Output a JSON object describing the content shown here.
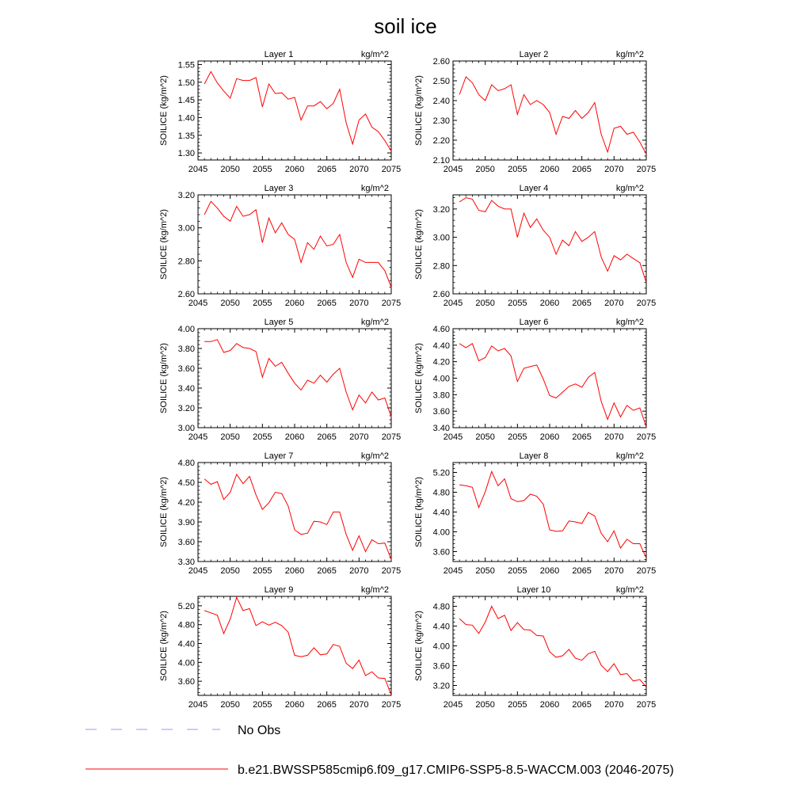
{
  "title": "soil ice",
  "units_label": "kg/m^2",
  "series_color": "#ff0000",
  "obs_color": "#9999ff",
  "legend": {
    "obs_label": "No Obs",
    "model_label": "b.e21.BWSSP585cmip6.f09_g17.CMIP6-SSP5-8.5-WACCM.003 (2046-2075)"
  },
  "chart_data": [
    {
      "type": "line",
      "title": "Layer 1",
      "units": "kg/m^2",
      "ylabel": "SOILICE  (kg/m^2)",
      "xlim": [
        2045,
        2075
      ],
      "xticks": [
        2045,
        2050,
        2055,
        2060,
        2065,
        2070,
        2075
      ],
      "ylim": [
        1.28,
        1.56
      ],
      "yticks": [
        "1.30",
        "1.35",
        "1.40",
        "1.45",
        "1.50",
        "1.55"
      ],
      "x": [
        2046,
        2047,
        2048,
        2049,
        2050,
        2051,
        2052,
        2053,
        2054,
        2055,
        2056,
        2057,
        2058,
        2059,
        2060,
        2061,
        2062,
        2063,
        2064,
        2065,
        2066,
        2067,
        2068,
        2069,
        2070,
        2071,
        2072,
        2073,
        2074,
        2075
      ],
      "values": [
        1.495,
        1.53,
        1.498,
        1.475,
        1.455,
        1.51,
        1.505,
        1.505,
        1.513,
        1.43,
        1.495,
        1.468,
        1.47,
        1.452,
        1.457,
        1.393,
        1.433,
        1.433,
        1.445,
        1.425,
        1.44,
        1.48,
        1.385,
        1.325,
        1.393,
        1.41,
        1.373,
        1.36,
        1.335,
        1.305
      ]
    },
    {
      "type": "line",
      "title": "Layer 2",
      "units": "kg/m^2",
      "ylabel": "SOILICE  (kg/m^2)",
      "xlim": [
        2045,
        2075
      ],
      "xticks": [
        2045,
        2050,
        2055,
        2060,
        2065,
        2070,
        2075
      ],
      "ylim": [
        2.1,
        2.6
      ],
      "yticks": [
        "2.10",
        "2.20",
        "2.30",
        "2.40",
        "2.50",
        "2.60"
      ],
      "x": [
        2046,
        2047,
        2048,
        2049,
        2050,
        2051,
        2052,
        2053,
        2054,
        2055,
        2056,
        2057,
        2058,
        2059,
        2060,
        2061,
        2062,
        2063,
        2064,
        2065,
        2066,
        2067,
        2068,
        2069,
        2070,
        2071,
        2072,
        2073,
        2074,
        2075
      ],
      "values": [
        2.43,
        2.52,
        2.49,
        2.43,
        2.4,
        2.48,
        2.45,
        2.46,
        2.48,
        2.33,
        2.43,
        2.38,
        2.4,
        2.38,
        2.34,
        2.23,
        2.32,
        2.31,
        2.35,
        2.31,
        2.34,
        2.39,
        2.23,
        2.14,
        2.26,
        2.27,
        2.23,
        2.24,
        2.19,
        2.13
      ]
    },
    {
      "type": "line",
      "title": "Layer 3",
      "units": "kg/m^2",
      "ylabel": "SOILICE  (kg/m^2)",
      "xlim": [
        2045,
        2075
      ],
      "xticks": [
        2045,
        2050,
        2055,
        2060,
        2065,
        2070,
        2075
      ],
      "ylim": [
        2.6,
        3.2
      ],
      "yticks": [
        "2.60",
        "2.80",
        "3.00",
        "3.20"
      ],
      "x": [
        2046,
        2047,
        2048,
        2049,
        2050,
        2051,
        2052,
        2053,
        2054,
        2055,
        2056,
        2057,
        2058,
        2059,
        2060,
        2061,
        2062,
        2063,
        2064,
        2065,
        2066,
        2067,
        2068,
        2069,
        2070,
        2071,
        2072,
        2073,
        2074,
        2075
      ],
      "values": [
        3.08,
        3.16,
        3.12,
        3.07,
        3.04,
        3.13,
        3.07,
        3.08,
        3.11,
        2.91,
        3.06,
        2.97,
        3.03,
        2.96,
        2.93,
        2.79,
        2.91,
        2.87,
        2.95,
        2.89,
        2.9,
        2.96,
        2.79,
        2.7,
        2.81,
        2.79,
        2.79,
        2.79,
        2.74,
        2.64
      ]
    },
    {
      "type": "line",
      "title": "Layer 4",
      "units": "kg/m^2",
      "ylabel": "SOILICE  (kg/m^2)",
      "xlim": [
        2045,
        2075
      ],
      "xticks": [
        2045,
        2050,
        2055,
        2060,
        2065,
        2070,
        2075
      ],
      "ylim": [
        2.6,
        3.3
      ],
      "yticks": [
        "2.60",
        "2.80",
        "3.00",
        "3.20"
      ],
      "x": [
        2046,
        2047,
        2048,
        2049,
        2050,
        2051,
        2052,
        2053,
        2054,
        2055,
        2056,
        2057,
        2058,
        2059,
        2060,
        2061,
        2062,
        2063,
        2064,
        2065,
        2066,
        2067,
        2068,
        2069,
        2070,
        2071,
        2072,
        2073,
        2074,
        2075
      ],
      "values": [
        3.25,
        3.28,
        3.27,
        3.19,
        3.18,
        3.26,
        3.22,
        3.2,
        3.2,
        3.0,
        3.17,
        3.07,
        3.13,
        3.05,
        3.0,
        2.88,
        2.98,
        2.94,
        3.04,
        2.97,
        3.0,
        3.04,
        2.86,
        2.76,
        2.87,
        2.84,
        2.88,
        2.85,
        2.82,
        2.68
      ]
    },
    {
      "type": "line",
      "title": "Layer 5",
      "units": "kg/m^2",
      "ylabel": "SOILICE  (kg/m^2)",
      "xlim": [
        2045,
        2075
      ],
      "xticks": [
        2045,
        2050,
        2055,
        2060,
        2065,
        2070,
        2075
      ],
      "ylim": [
        3.0,
        4.0
      ],
      "yticks": [
        "3.00",
        "3.20",
        "3.40",
        "3.60",
        "3.80",
        "4.00"
      ],
      "x": [
        2046,
        2047,
        2048,
        2049,
        2050,
        2051,
        2052,
        2053,
        2054,
        2055,
        2056,
        2057,
        2058,
        2059,
        2060,
        2061,
        2062,
        2063,
        2064,
        2065,
        2066,
        2067,
        2068,
        2069,
        2070,
        2071,
        2072,
        2073,
        2074,
        2075
      ],
      "values": [
        3.87,
        3.87,
        3.89,
        3.76,
        3.78,
        3.85,
        3.81,
        3.8,
        3.77,
        3.51,
        3.7,
        3.62,
        3.66,
        3.55,
        3.45,
        3.38,
        3.48,
        3.45,
        3.53,
        3.46,
        3.54,
        3.6,
        3.36,
        3.18,
        3.33,
        3.25,
        3.36,
        3.28,
        3.3,
        3.11
      ]
    },
    {
      "type": "line",
      "title": "Layer 6",
      "units": "kg/m^2",
      "ylabel": "SOILICE  (kg/m^2)",
      "xlim": [
        2045,
        2075
      ],
      "xticks": [
        2045,
        2050,
        2055,
        2060,
        2065,
        2070,
        2075
      ],
      "ylim": [
        3.4,
        4.6
      ],
      "yticks": [
        "3.40",
        "3.60",
        "3.80",
        "4.00",
        "4.20",
        "4.40",
        "4.60"
      ],
      "x": [
        2046,
        2047,
        2048,
        2049,
        2050,
        2051,
        2052,
        2053,
        2054,
        2055,
        2056,
        2057,
        2058,
        2059,
        2060,
        2061,
        2062,
        2063,
        2064,
        2065,
        2066,
        2067,
        2068,
        2069,
        2070,
        2071,
        2072,
        2073,
        2074,
        2075
      ],
      "values": [
        4.42,
        4.37,
        4.42,
        4.21,
        4.25,
        4.39,
        4.33,
        4.36,
        4.27,
        3.96,
        4.12,
        4.14,
        4.16,
        3.99,
        3.79,
        3.76,
        3.83,
        3.9,
        3.93,
        3.89,
        4.01,
        4.07,
        3.72,
        3.5,
        3.7,
        3.53,
        3.67,
        3.61,
        3.64,
        3.41
      ]
    },
    {
      "type": "line",
      "title": "Layer 7",
      "units": "kg/m^2",
      "ylabel": "SOILICE  (kg/m^2)",
      "xlim": [
        2045,
        2075
      ],
      "xticks": [
        2045,
        2050,
        2055,
        2060,
        2065,
        2070,
        2075
      ],
      "ylim": [
        3.3,
        4.8
      ],
      "yticks": [
        "3.30",
        "3.60",
        "3.90",
        "4.20",
        "4.50",
        "4.80"
      ],
      "x": [
        2046,
        2047,
        2048,
        2049,
        2050,
        2051,
        2052,
        2053,
        2054,
        2055,
        2056,
        2057,
        2058,
        2059,
        2060,
        2061,
        2062,
        2063,
        2064,
        2065,
        2066,
        2067,
        2068,
        2069,
        2070,
        2071,
        2072,
        2073,
        2074,
        2075
      ],
      "values": [
        4.55,
        4.47,
        4.51,
        4.24,
        4.35,
        4.62,
        4.48,
        4.59,
        4.31,
        4.09,
        4.19,
        4.35,
        4.33,
        4.14,
        3.78,
        3.71,
        3.73,
        3.91,
        3.9,
        3.86,
        4.05,
        4.05,
        3.71,
        3.47,
        3.69,
        3.45,
        3.63,
        3.57,
        3.58,
        3.33
      ]
    },
    {
      "type": "line",
      "title": "Layer 8",
      "units": "kg/m^2",
      "ylabel": "SOILICE  (kg/m^2)",
      "xlim": [
        2045,
        2075
      ],
      "xticks": [
        2045,
        2050,
        2055,
        2060,
        2065,
        2070,
        2075
      ],
      "ylim": [
        3.4,
        5.4
      ],
      "yticks": [
        "3.60",
        "4.00",
        "4.40",
        "4.80",
        "5.20"
      ],
      "x": [
        2046,
        2047,
        2048,
        2049,
        2050,
        2051,
        2052,
        2053,
        2054,
        2055,
        2056,
        2057,
        2058,
        2059,
        2060,
        2061,
        2062,
        2063,
        2064,
        2065,
        2066,
        2067,
        2068,
        2069,
        2070,
        2071,
        2072,
        2073,
        2074,
        2075
      ],
      "values": [
        4.95,
        4.93,
        4.9,
        4.49,
        4.81,
        5.22,
        4.93,
        5.07,
        4.67,
        4.61,
        4.63,
        4.76,
        4.72,
        4.56,
        4.04,
        4.01,
        4.02,
        4.22,
        4.2,
        4.17,
        4.39,
        4.32,
        3.97,
        3.8,
        4.02,
        3.67,
        3.85,
        3.76,
        3.76,
        3.47
      ]
    },
    {
      "type": "line",
      "title": "Layer 9",
      "units": "kg/m^2",
      "ylabel": "SOILICE  (kg/m^2)",
      "xlim": [
        2045,
        2075
      ],
      "xticks": [
        2045,
        2050,
        2055,
        2060,
        2065,
        2070,
        2075
      ],
      "ylim": [
        3.3,
        5.4
      ],
      "yticks": [
        "3.60",
        "4.00",
        "4.40",
        "4.80",
        "5.20"
      ],
      "x": [
        2046,
        2047,
        2048,
        2049,
        2050,
        2051,
        2052,
        2053,
        2054,
        2055,
        2056,
        2057,
        2058,
        2059,
        2060,
        2061,
        2062,
        2063,
        2064,
        2065,
        2066,
        2067,
        2068,
        2069,
        2070,
        2071,
        2072,
        2073,
        2074,
        2075
      ],
      "values": [
        5.1,
        5.05,
        5.0,
        4.61,
        4.92,
        5.38,
        5.1,
        5.14,
        4.78,
        4.86,
        4.79,
        4.85,
        4.78,
        4.64,
        4.15,
        4.12,
        4.15,
        4.31,
        4.16,
        4.18,
        4.38,
        4.34,
        3.98,
        3.87,
        4.05,
        3.72,
        3.8,
        3.67,
        3.66,
        3.31
      ]
    },
    {
      "type": "line",
      "title": "Layer 10",
      "units": "kg/m^2",
      "ylabel": "SOILICE  (kg/m^2)",
      "xlim": [
        2045,
        2075
      ],
      "xticks": [
        2045,
        2050,
        2055,
        2060,
        2065,
        2070,
        2075
      ],
      "ylim": [
        3.0,
        5.0
      ],
      "yticks": [
        "3.20",
        "3.60",
        "4.00",
        "4.40",
        "4.80"
      ],
      "x": [
        2046,
        2047,
        2048,
        2049,
        2050,
        2051,
        2052,
        2053,
        2054,
        2055,
        2056,
        2057,
        2058,
        2059,
        2060,
        2061,
        2062,
        2063,
        2064,
        2065,
        2066,
        2067,
        2068,
        2069,
        2070,
        2071,
        2072,
        2073,
        2074,
        2075
      ],
      "values": [
        4.55,
        4.43,
        4.42,
        4.25,
        4.48,
        4.8,
        4.55,
        4.62,
        4.31,
        4.47,
        4.33,
        4.32,
        4.21,
        4.2,
        3.88,
        3.77,
        3.8,
        3.93,
        3.75,
        3.71,
        3.84,
        3.89,
        3.61,
        3.48,
        3.64,
        3.42,
        3.44,
        3.29,
        3.32,
        3.17
      ]
    }
  ]
}
